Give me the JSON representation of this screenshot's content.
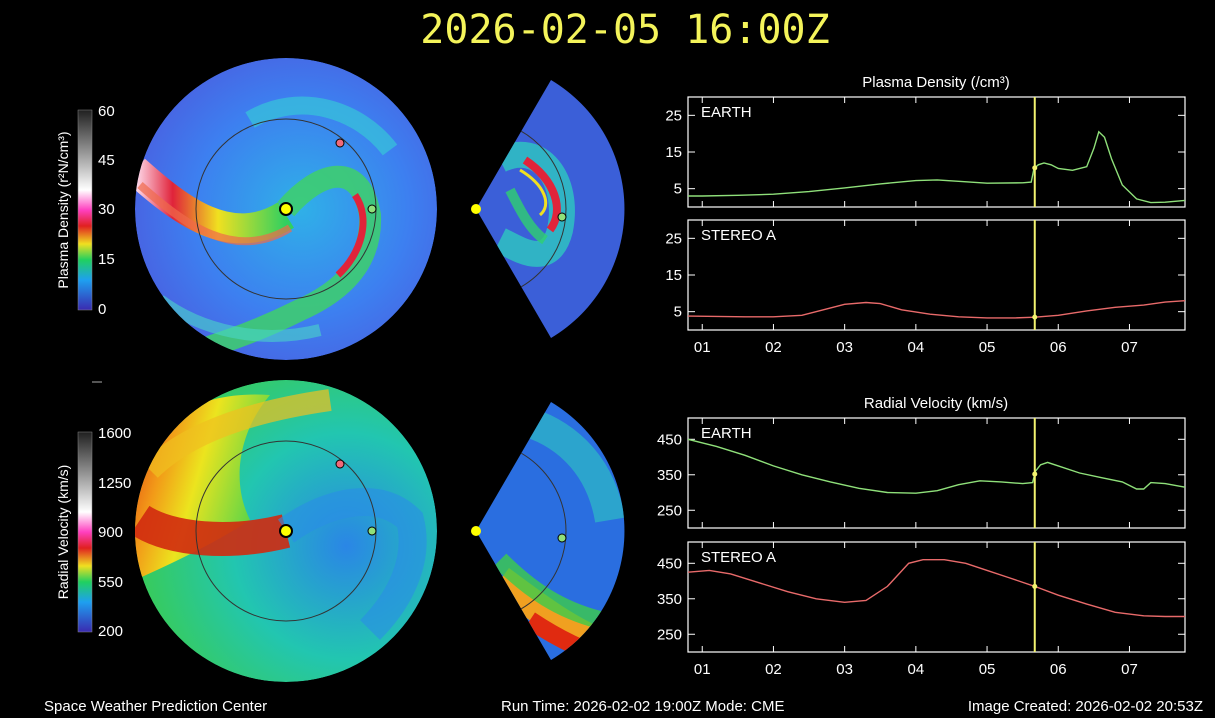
{
  "header": {
    "datetime": "2026-02-05 16:00Z"
  },
  "footer": {
    "left": "Space Weather Prediction Center",
    "center": "Run Time: 2026-02-02 19:00Z  Mode: CME",
    "right": "Image Created: 2026-02-02 20:53Z"
  },
  "colorbars": [
    {
      "label": "Plasma Density (r²N/cm³)",
      "ticks": [
        "60",
        "45",
        "30",
        "15",
        "0"
      ]
    },
    {
      "label": "Radial Velocity (km/s)",
      "ticks": [
        "1600",
        "1250",
        "900",
        "550",
        "200"
      ]
    }
  ],
  "colors": {
    "earth_line": "#8fe07a",
    "stereo_line": "#e86a6a",
    "time_marker": "#f2f26e",
    "sun": "#ffff00",
    "frame": "#ffffff"
  },
  "chart_data": [
    {
      "type": "line",
      "title": "Plasma Density (/cm³)",
      "panel_label": "EARTH",
      "x_ticks": [
        "01",
        "02",
        "03",
        "04",
        "05",
        "06",
        "07"
      ],
      "x_range": [
        0.8,
        7.78
      ],
      "ylim": [
        0,
        30
      ],
      "y_ticks": [
        25,
        15,
        5
      ],
      "current_time": 5.67,
      "series": [
        {
          "color": "#8fe07a",
          "x": [
            0.8,
            1.0,
            1.5,
            2.0,
            2.5,
            3.0,
            3.5,
            4.0,
            4.3,
            4.6,
            5.0,
            5.5,
            5.62,
            5.66,
            5.72,
            5.8,
            5.9,
            6.0,
            6.2,
            6.4,
            6.5,
            6.57,
            6.65,
            6.75,
            6.9,
            7.1,
            7.3,
            7.5,
            7.78
          ],
          "y": [
            3.0,
            3.0,
            3.2,
            3.5,
            4.2,
            5.2,
            6.3,
            7.2,
            7.4,
            7.0,
            6.5,
            6.6,
            6.8,
            10.5,
            11.5,
            12.0,
            11.5,
            10.5,
            10.0,
            11.0,
            16.0,
            20.5,
            19.0,
            13.0,
            6.0,
            2.2,
            1.2,
            1.3,
            1.8
          ]
        }
      ]
    },
    {
      "type": "line",
      "panel_label": "STEREO A",
      "x_ticks": [
        "01",
        "02",
        "03",
        "04",
        "05",
        "06",
        "07"
      ],
      "x_range": [
        0.8,
        7.78
      ],
      "ylim": [
        0,
        30
      ],
      "y_ticks": [
        25,
        15,
        5
      ],
      "current_time": 5.67,
      "series": [
        {
          "color": "#e86a6a",
          "x": [
            0.8,
            1.2,
            1.6,
            2.0,
            2.4,
            2.7,
            3.0,
            3.3,
            3.5,
            3.8,
            4.2,
            4.6,
            5.0,
            5.4,
            5.67,
            6.0,
            6.4,
            6.8,
            7.2,
            7.5,
            7.78
          ],
          "y": [
            3.8,
            3.7,
            3.6,
            3.6,
            4.0,
            5.5,
            7.0,
            7.5,
            7.2,
            5.5,
            4.3,
            3.6,
            3.3,
            3.3,
            3.5,
            4.0,
            5.2,
            6.2,
            6.8,
            7.6,
            8.0
          ]
        }
      ]
    },
    {
      "type": "line",
      "title": "Radial Velocity (km/s)",
      "panel_label": "EARTH",
      "x_ticks": [
        "01",
        "02",
        "03",
        "04",
        "05",
        "06",
        "07"
      ],
      "x_range": [
        0.8,
        7.78
      ],
      "ylim": [
        200,
        510
      ],
      "y_ticks": [
        450,
        350,
        250
      ],
      "current_time": 5.67,
      "series": [
        {
          "color": "#8fe07a",
          "x": [
            0.8,
            1.2,
            1.6,
            2.0,
            2.4,
            2.8,
            3.2,
            3.6,
            4.0,
            4.3,
            4.6,
            4.9,
            5.2,
            5.5,
            5.64,
            5.68,
            5.75,
            5.85,
            6.0,
            6.3,
            6.6,
            6.9,
            7.1,
            7.2,
            7.3,
            7.5,
            7.78
          ],
          "y": [
            450,
            430,
            405,
            375,
            350,
            330,
            312,
            300,
            298,
            305,
            322,
            333,
            330,
            325,
            328,
            360,
            378,
            385,
            375,
            355,
            342,
            330,
            310,
            310,
            328,
            325,
            315
          ]
        }
      ]
    },
    {
      "type": "line",
      "panel_label": "STEREO A",
      "x_ticks": [
        "01",
        "02",
        "03",
        "04",
        "05",
        "06",
        "07"
      ],
      "x_range": [
        0.8,
        7.78
      ],
      "ylim": [
        200,
        510
      ],
      "y_ticks": [
        450,
        350,
        250
      ],
      "current_time": 5.67,
      "series": [
        {
          "color": "#e86a6a",
          "x": [
            0.8,
            1.1,
            1.4,
            1.8,
            2.2,
            2.6,
            3.0,
            3.3,
            3.6,
            3.9,
            4.1,
            4.4,
            4.7,
            5.0,
            5.3,
            5.67,
            6.0,
            6.4,
            6.8,
            7.2,
            7.5,
            7.78
          ],
          "y": [
            425,
            430,
            420,
            395,
            370,
            350,
            340,
            345,
            385,
            450,
            460,
            460,
            450,
            430,
            410,
            385,
            360,
            335,
            312,
            302,
            300,
            300
          ]
        }
      ]
    }
  ]
}
